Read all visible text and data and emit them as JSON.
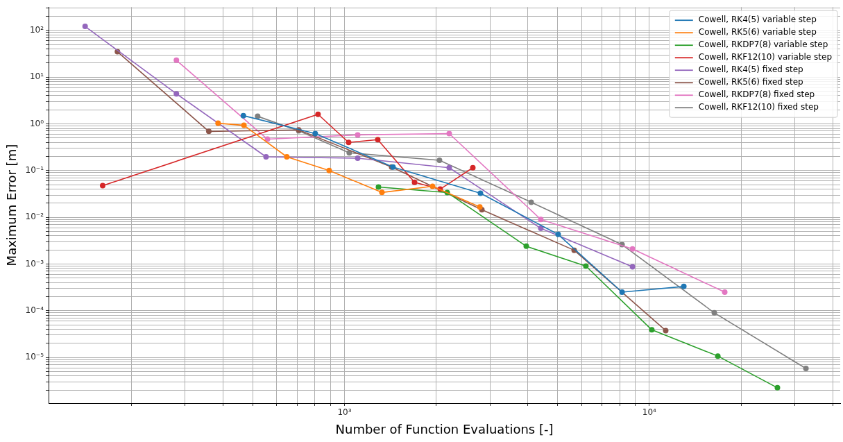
{
  "chart_data": {
    "type": "line",
    "xlabel": "Number of Function Evaluations [-]",
    "ylabel": "Maximum Error [m]",
    "log": "xy",
    "grid": true,
    "legend": "top right",
    "marker": "circle",
    "line_style": "solid",
    "xlim": [
      107,
      42300
    ],
    "ylim": [
      1.05e-06,
      316
    ],
    "xticks": [
      {
        "value": 200,
        "label": null
      },
      {
        "value": 300,
        "label": null
      },
      {
        "value": 400,
        "label": null
      },
      {
        "value": 500,
        "label": null
      },
      {
        "value": 600,
        "label": null
      },
      {
        "value": 700,
        "label": null
      },
      {
        "value": 800,
        "label": null
      },
      {
        "value": 900,
        "label": null
      },
      {
        "value": 1000,
        "label": "10³"
      },
      {
        "value": 2000,
        "label": null
      },
      {
        "value": 3000,
        "label": null
      },
      {
        "value": 4000,
        "label": null
      },
      {
        "value": 5000,
        "label": null
      },
      {
        "value": 6000,
        "label": null
      },
      {
        "value": 7000,
        "label": null
      },
      {
        "value": 8000,
        "label": null
      },
      {
        "value": 9000,
        "label": null
      },
      {
        "value": 10000,
        "label": "10⁴"
      },
      {
        "value": 20000,
        "label": null
      },
      {
        "value": 30000,
        "label": null
      },
      {
        "value": 40000,
        "label": null
      }
    ],
    "yticks": [
      {
        "value": 2e-06,
        "label": null
      },
      {
        "value": 3e-06,
        "label": null
      },
      {
        "value": 4e-06,
        "label": null
      },
      {
        "value": 5e-06,
        "label": null
      },
      {
        "value": 6e-06,
        "label": null
      },
      {
        "value": 7e-06,
        "label": null
      },
      {
        "value": 8e-06,
        "label": null
      },
      {
        "value": 9e-06,
        "label": null
      },
      {
        "value": 1e-05,
        "label": "10⁻⁵"
      },
      {
        "value": 2e-05,
        "label": null
      },
      {
        "value": 3e-05,
        "label": null
      },
      {
        "value": 4e-05,
        "label": null
      },
      {
        "value": 5e-05,
        "label": null
      },
      {
        "value": 6e-05,
        "label": null
      },
      {
        "value": 7e-05,
        "label": null
      },
      {
        "value": 8e-05,
        "label": null
      },
      {
        "value": 9e-05,
        "label": null
      },
      {
        "value": 0.0001,
        "label": "10⁻⁴"
      },
      {
        "value": 0.0002,
        "label": null
      },
      {
        "value": 0.0003,
        "label": null
      },
      {
        "value": 0.0004,
        "label": null
      },
      {
        "value": 0.0005,
        "label": null
      },
      {
        "value": 0.0006,
        "label": null
      },
      {
        "value": 0.0007,
        "label": null
      },
      {
        "value": 0.0008,
        "label": null
      },
      {
        "value": 0.0009,
        "label": null
      },
      {
        "value": 0.001,
        "label": "10⁻³"
      },
      {
        "value": 0.002,
        "label": null
      },
      {
        "value": 0.003,
        "label": null
      },
      {
        "value": 0.004,
        "label": null
      },
      {
        "value": 0.005,
        "label": null
      },
      {
        "value": 0.006,
        "label": null
      },
      {
        "value": 0.007,
        "label": null
      },
      {
        "value": 0.008,
        "label": null
      },
      {
        "value": 0.009,
        "label": null
      },
      {
        "value": 0.01,
        "label": "10⁻²"
      },
      {
        "value": 0.02,
        "label": null
      },
      {
        "value": 0.03,
        "label": null
      },
      {
        "value": 0.04,
        "label": null
      },
      {
        "value": 0.05,
        "label": null
      },
      {
        "value": 0.06,
        "label": null
      },
      {
        "value": 0.07,
        "label": null
      },
      {
        "value": 0.08,
        "label": null
      },
      {
        "value": 0.09,
        "label": null
      },
      {
        "value": 0.1,
        "label": "10⁻¹"
      },
      {
        "value": 0.2,
        "label": null
      },
      {
        "value": 0.3,
        "label": null
      },
      {
        "value": 0.4,
        "label": null
      },
      {
        "value": 0.5,
        "label": null
      },
      {
        "value": 0.6,
        "label": null
      },
      {
        "value": 0.7,
        "label": null
      },
      {
        "value": 0.8,
        "label": null
      },
      {
        "value": 0.9,
        "label": null
      },
      {
        "value": 1,
        "label": "10⁰"
      },
      {
        "value": 2,
        "label": null
      },
      {
        "value": 3,
        "label": null
      },
      {
        "value": 4,
        "label": null
      },
      {
        "value": 5,
        "label": null
      },
      {
        "value": 6,
        "label": null
      },
      {
        "value": 7,
        "label": null
      },
      {
        "value": 8,
        "label": null
      },
      {
        "value": 9,
        "label": null
      },
      {
        "value": 10,
        "label": "10¹"
      },
      {
        "value": 20,
        "label": null
      },
      {
        "value": 30,
        "label": null
      },
      {
        "value": 40,
        "label": null
      },
      {
        "value": 50,
        "label": null
      },
      {
        "value": 60,
        "label": null
      },
      {
        "value": 70,
        "label": null
      },
      {
        "value": 80,
        "label": null
      },
      {
        "value": 90,
        "label": null
      },
      {
        "value": 100,
        "label": "10²"
      },
      {
        "value": 200,
        "label": null
      },
      {
        "value": 300,
        "label": null
      }
    ],
    "series": [
      {
        "name": "Cowell, RK4(5) variable step",
        "color": "#1f77b4",
        "x": [
          466,
          802,
          1443,
          2793,
          5024,
          8140,
          12980
        ],
        "values": [
          1.5,
          0.62,
          0.119,
          0.0327,
          0.0043,
          0.00025,
          0.00033
        ]
      },
      {
        "name": "Cowell, RK5(6) variable step",
        "color": "#ff7f0e",
        "x": [
          385,
          468,
          647,
          891,
          1327,
          1945,
          2780
        ],
        "values": [
          1.03,
          0.93,
          0.197,
          0.1,
          0.034,
          0.046,
          0.0166
        ]
      },
      {
        "name": "Cowell, RKDP7(8) variable step",
        "color": "#2ca02c",
        "x": [
          1293,
          2173,
          3948,
          6195,
          10190,
          16780,
          26320
        ],
        "values": [
          0.0444,
          0.0339,
          0.0024,
          0.0009,
          3.9e-05,
          1.07e-05,
          2.24e-06
        ]
      },
      {
        "name": "Cowell, RKF12(10) variable step",
        "color": "#d62728",
        "x": [
          161,
          819,
          1032,
          1286,
          1698,
          2061,
          2637
        ],
        "values": [
          0.0475,
          1.6,
          0.4,
          0.46,
          0.056,
          0.04,
          0.115
        ]
      },
      {
        "name": "Cowell, RK4(5) fixed step",
        "color": "#9467bd",
        "x": [
          141,
          281,
          553,
          1105,
          2206,
          4406,
          8810
        ],
        "values": [
          122,
          4.4,
          0.197,
          0.184,
          0.115,
          0.0058,
          0.00087
        ]
      },
      {
        "name": "Cowell, RK5(6) fixed step",
        "color": "#8c564b",
        "x": [
          180,
          359,
          708,
          1428,
          2823,
          5670,
          11320
        ],
        "values": [
          35,
          0.69,
          0.74,
          0.119,
          0.0145,
          0.00197,
          3.75e-05
        ]
      },
      {
        "name": "Cowell, RKDP7(8) fixed step",
        "color": "#e377c2",
        "x": [
          281,
          559,
          1105,
          2206,
          4406,
          8810,
          17680
        ],
        "values": [
          23,
          0.47,
          0.58,
          0.62,
          0.009,
          0.0021,
          0.00025
        ]
      },
      {
        "name": "Cowell, RKF12(10) fixed step",
        "color": "#7f7f7f",
        "x": [
          519,
          708,
          1037,
          2050,
          4097,
          8140,
          16340,
          32650
        ],
        "values": [
          1.45,
          0.71,
          0.24,
          0.166,
          0.021,
          0.0026,
          9e-05,
          5.8e-06
        ]
      }
    ]
  }
}
